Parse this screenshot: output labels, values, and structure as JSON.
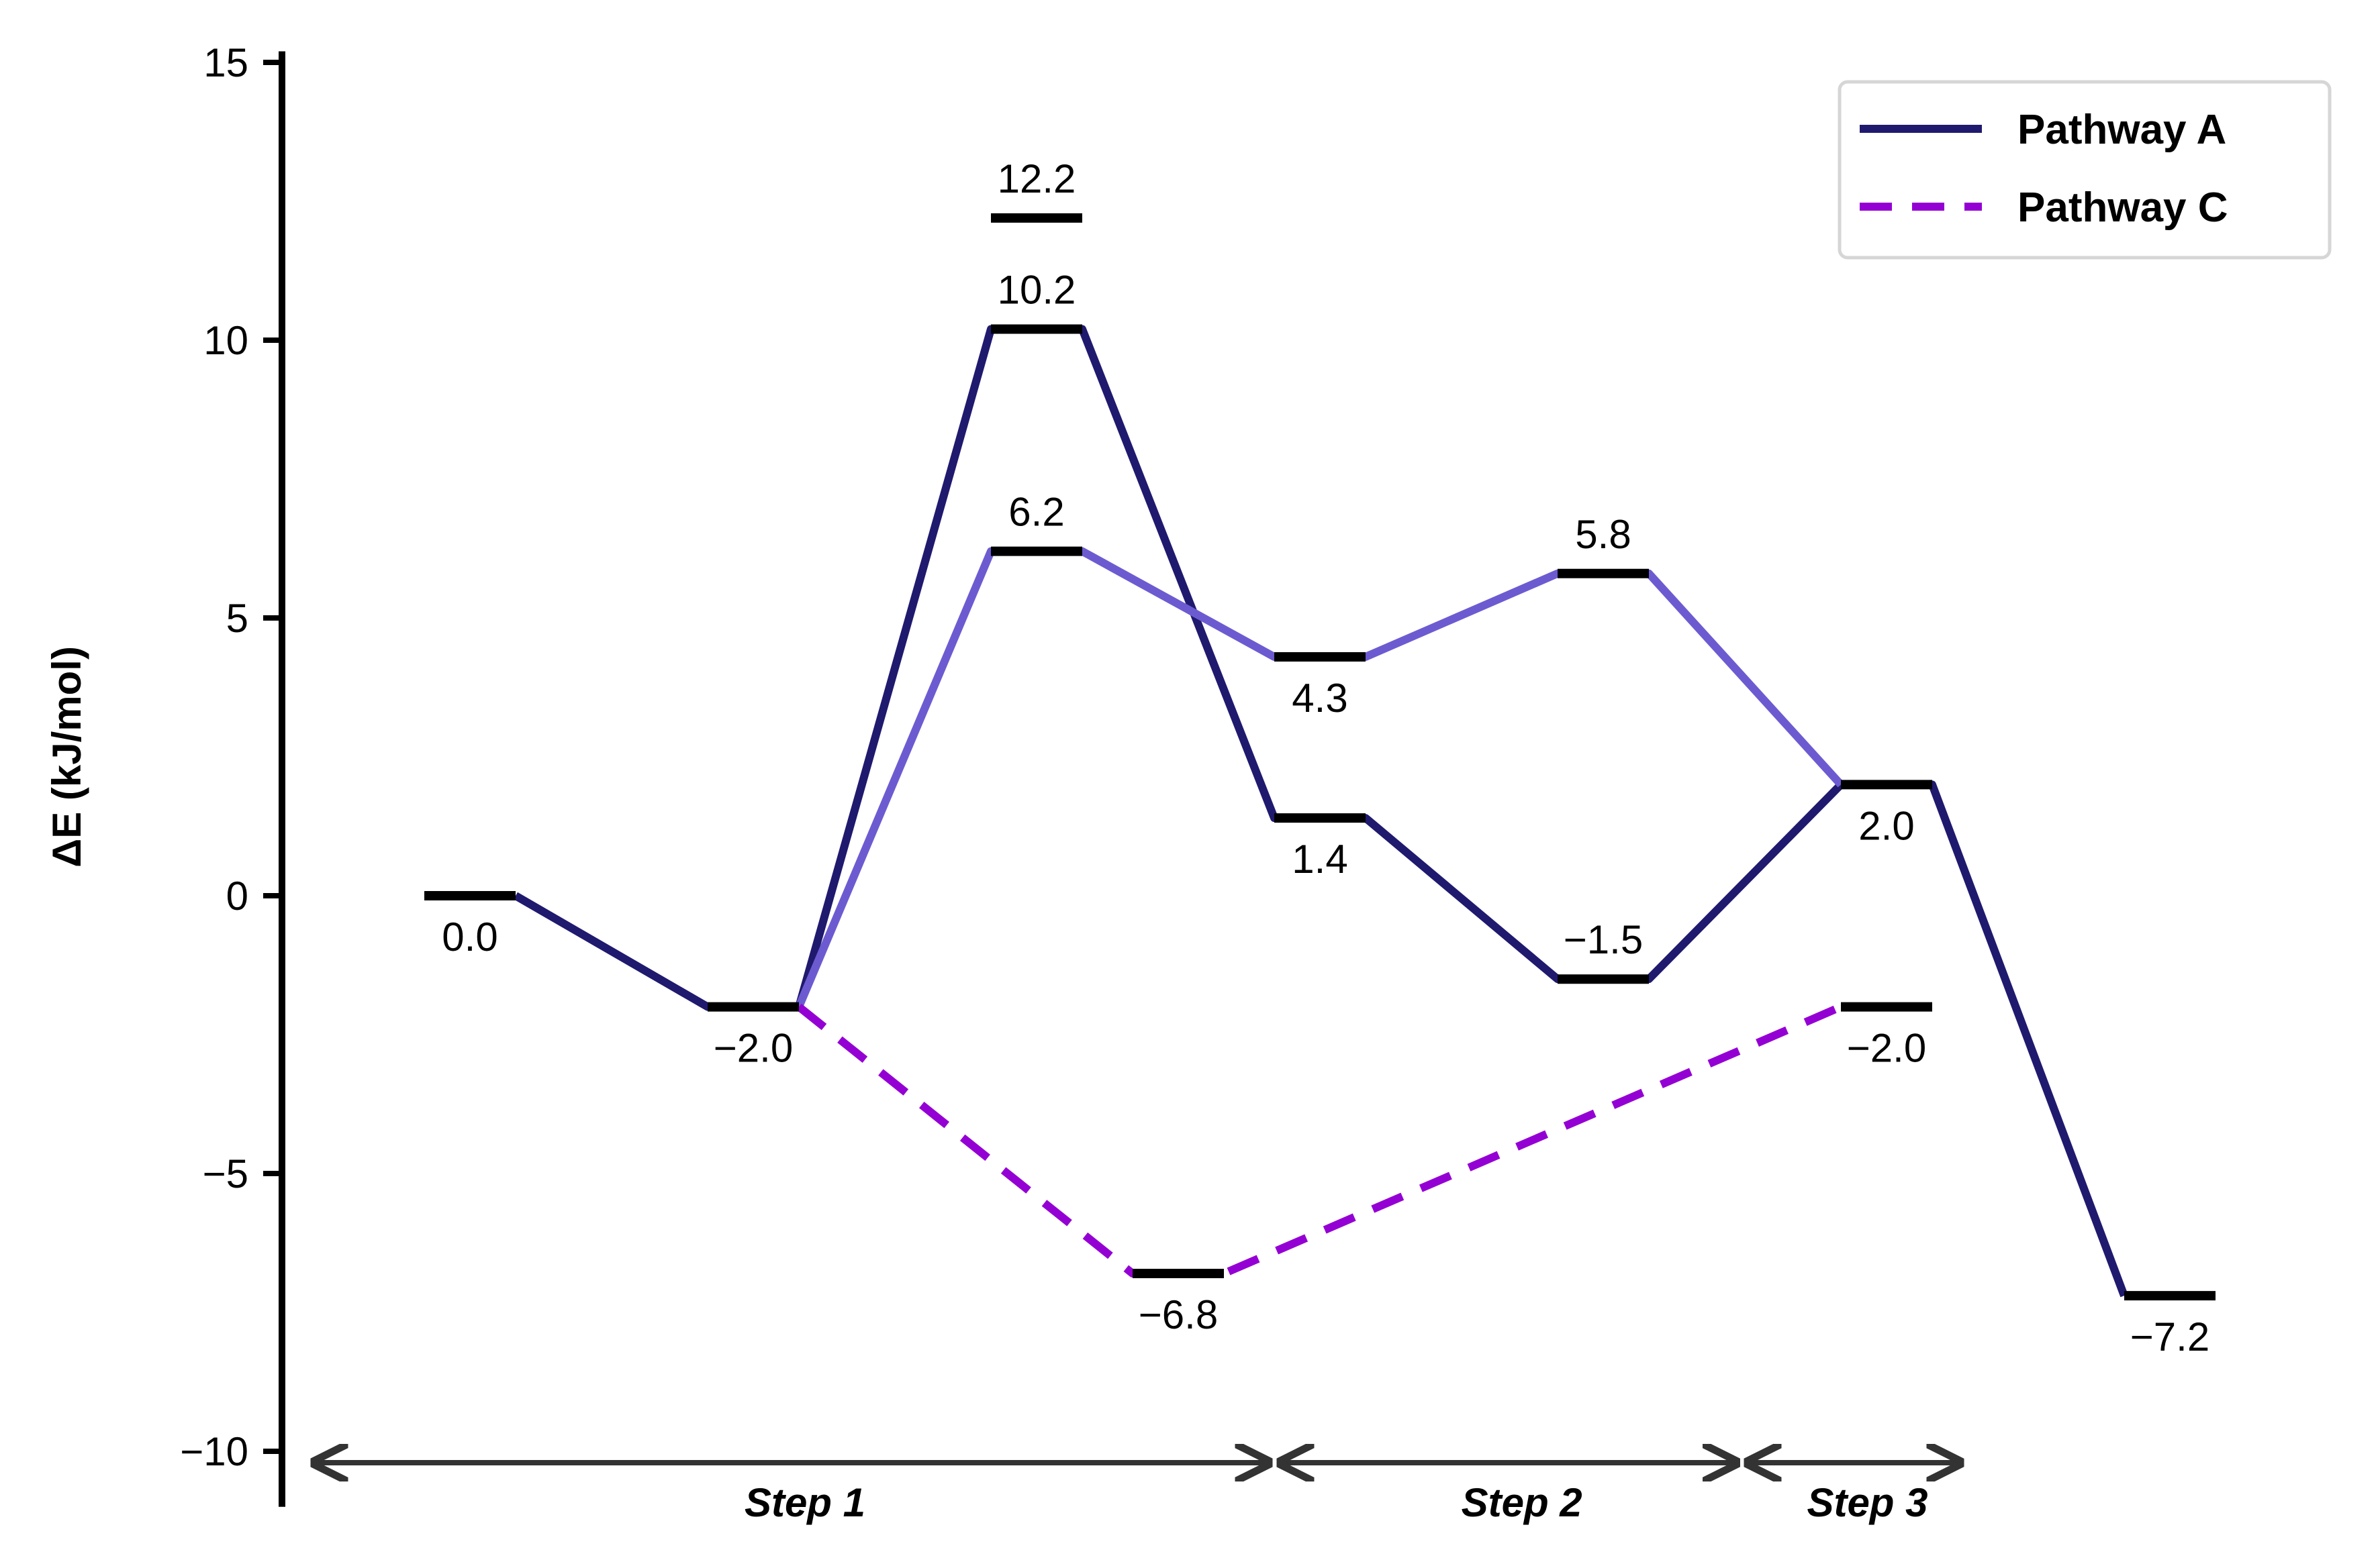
{
  "chart_data": {
    "type": "line",
    "subtype": "energy-profile",
    "title": "",
    "xlabel": "",
    "ylabel": "ΔE (kJ/mol)",
    "ylim": [
      -11,
      15.2
    ],
    "y_ticks": [
      15,
      10,
      5,
      0,
      -5,
      -10
    ],
    "y_tick_labels": [
      "15",
      "10",
      "5",
      "0",
      "−5",
      "−10"
    ],
    "grid": false,
    "legend_position": "top-right",
    "colors": {
      "pathway_a": "#1f1a6e",
      "pathway_a_light": "#6c5bd0",
      "pathway_c": "#9400d3",
      "level": "#000000",
      "arrow": "#333333"
    },
    "levels": [
      {
        "label": "0.0",
        "value": 0.0,
        "position": 0,
        "label_side": "below"
      },
      {
        "label": "−2.0",
        "value": -2.0,
        "position": 1,
        "label_side": "below"
      },
      {
        "label": "12.2",
        "value": 12.2,
        "position": 2,
        "label_side": "above"
      },
      {
        "label": "10.2",
        "value": 10.2,
        "position": 2,
        "label_side": "above"
      },
      {
        "label": "6.2",
        "value": 6.2,
        "position": 2,
        "label_side": "above"
      },
      {
        "label": "−6.8",
        "value": -6.8,
        "position": 2.5,
        "label_side": "below"
      },
      {
        "label": "4.3",
        "value": 4.3,
        "position": 3,
        "label_side": "below"
      },
      {
        "label": "1.4",
        "value": 1.4,
        "position": 3,
        "label_side": "below"
      },
      {
        "label": "5.8",
        "value": 5.8,
        "position": 4,
        "label_side": "above"
      },
      {
        "label": "−1.5",
        "value": -1.5,
        "position": 4,
        "label_side": "above"
      },
      {
        "label": "2.0",
        "value": 2.0,
        "position": 5,
        "label_side": "below"
      },
      {
        "label": "−2.0",
        "value": -2.0,
        "position": 5,
        "label_side": "below"
      },
      {
        "label": "−7.2",
        "value": -7.2,
        "position": 6,
        "label_side": "below"
      }
    ],
    "series": [
      {
        "name": "Pathway A",
        "style": "solid",
        "color": "#1f1a6e",
        "points": [
          {
            "position": 0,
            "value": 0.0
          },
          {
            "position": 1,
            "value": -2.0
          },
          {
            "position": 2,
            "value": 10.2
          },
          {
            "position": 3,
            "value": 1.4
          },
          {
            "position": 4,
            "value": -1.5
          },
          {
            "position": 5,
            "value": 2.0
          },
          {
            "position": 6,
            "value": -7.2
          }
        ]
      },
      {
        "style": "solid",
        "color": "#6c5bd0",
        "points": [
          {
            "position": 1,
            "value": -2.0
          },
          {
            "position": 2,
            "value": 6.2
          },
          {
            "position": 3,
            "value": 4.3
          },
          {
            "position": 4,
            "value": 5.8
          },
          {
            "position": 5,
            "value": 2.0
          }
        ]
      },
      {
        "name": "Pathway C",
        "style": "dashed",
        "color": "#9400d3",
        "points": [
          {
            "position": 1,
            "value": -2.0
          },
          {
            "position": 2.5,
            "value": -6.8
          },
          {
            "position": 5,
            "value": -2.0
          }
        ]
      }
    ],
    "legend": [
      "Pathway A",
      "Pathway C"
    ],
    "steps": [
      {
        "label": "Step 1",
        "from": 0,
        "to": 3
      },
      {
        "label": "Step 2",
        "from": 3,
        "to": 5
      },
      {
        "label": "Step 3",
        "from": 5,
        "to": 6
      }
    ]
  }
}
